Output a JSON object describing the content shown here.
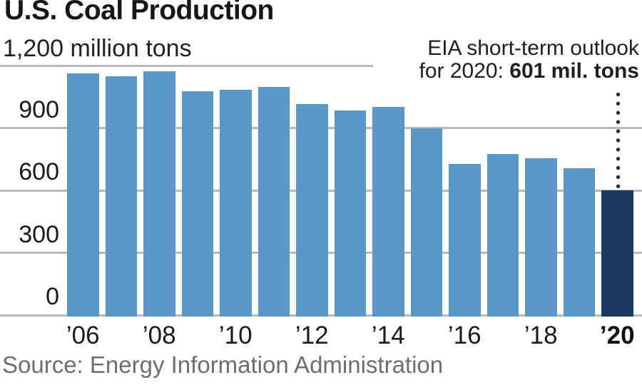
{
  "chart_data": {
    "type": "bar",
    "title": "U.S. Coal Production",
    "unit_label": "1,200 million tons",
    "ylabel": "million tons",
    "ylim": [
      0,
      1200
    ],
    "yticks": [
      0,
      300,
      600,
      900
    ],
    "grid": true,
    "legend": false,
    "categories": [
      "2006",
      "2007",
      "2008",
      "2009",
      "2010",
      "2011",
      "2012",
      "2013",
      "2014",
      "2015",
      "2016",
      "2017",
      "2018",
      "2019",
      "2020"
    ],
    "values": [
      1163,
      1147,
      1172,
      1075,
      1084,
      1096,
      1016,
      985,
      1000,
      897,
      728,
      775,
      756,
      706,
      601
    ],
    "x_tick_labels": [
      "’06",
      "’08",
      "’10",
      "’12",
      "’14",
      "’16",
      "’18",
      "’20"
    ],
    "x_tick_bar_indices": [
      0,
      2,
      4,
      6,
      8,
      10,
      12,
      14
    ],
    "highlight_index": 14,
    "annotation": {
      "line1": "EIA short-term outlook",
      "line2_prefix": "for 2020: ",
      "line2_bold": "601 mil. tons"
    },
    "source": "Source: Energy Information Administration",
    "colors": {
      "bar": "#5997ca",
      "highlight": "#1c3a5f",
      "gridline": "#b9b9b9",
      "dotted_line": "#2b2b2b",
      "title_text": "#161616",
      "source_text": "#6e6e6e"
    }
  }
}
